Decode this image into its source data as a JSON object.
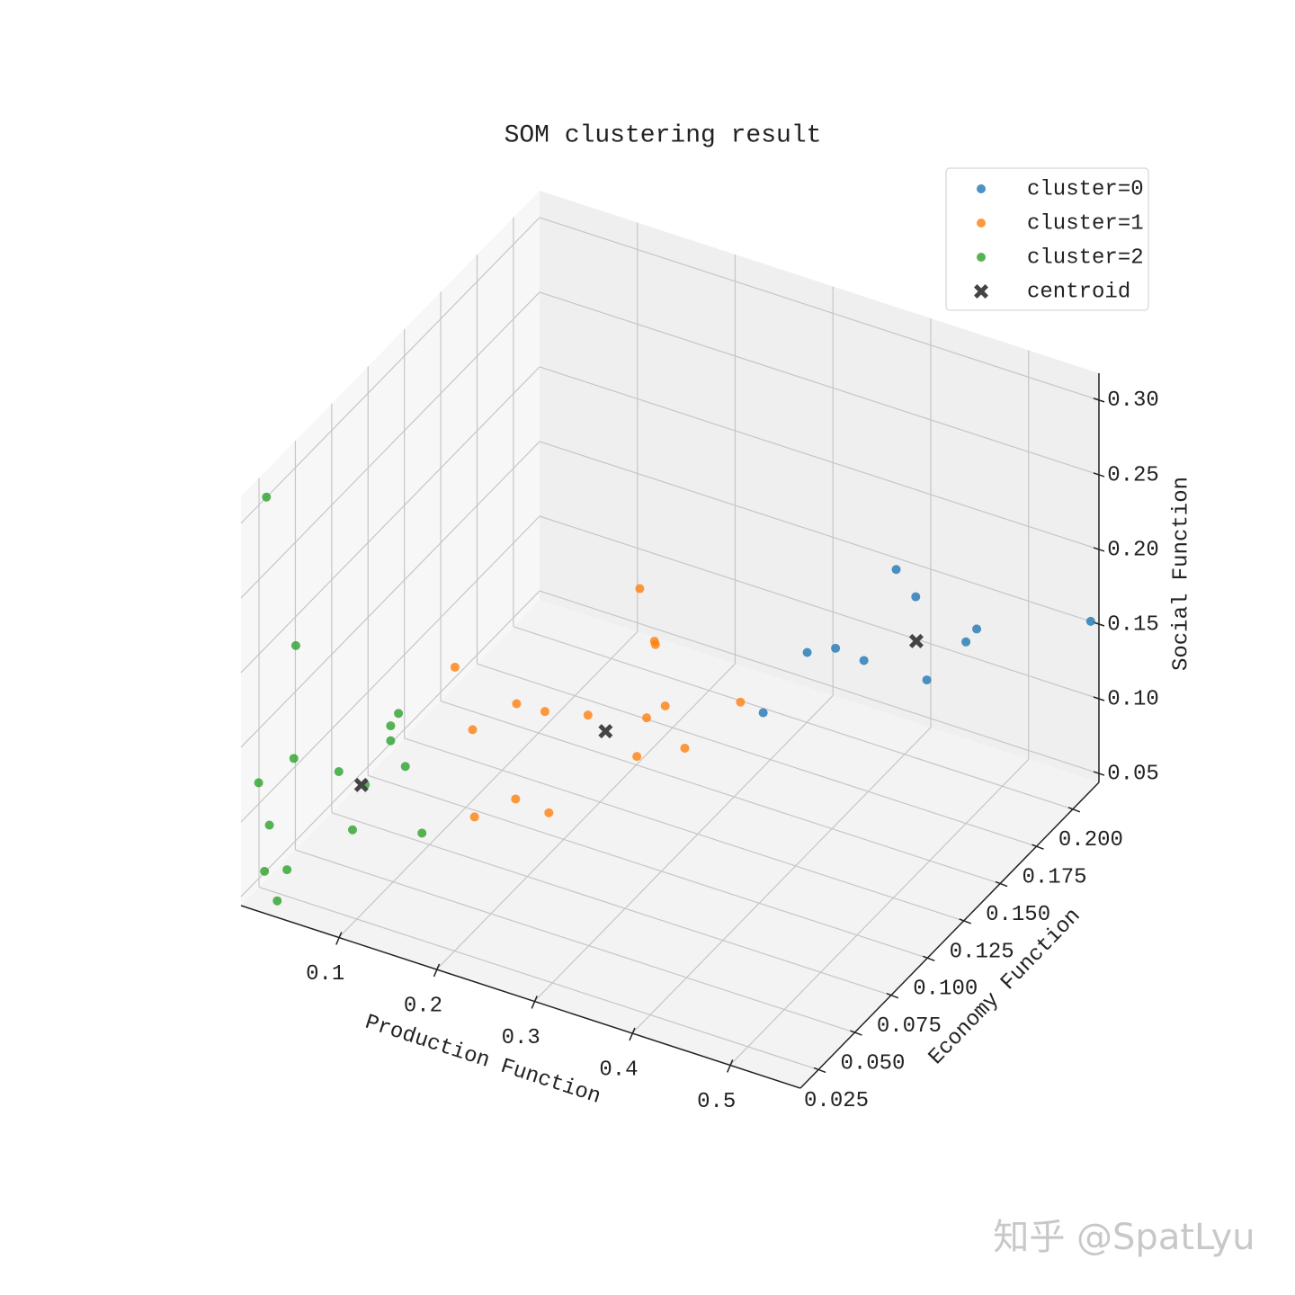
{
  "chart_data": {
    "type": "scatter3d",
    "title": "SOM clustering result",
    "x_label": "Production Function",
    "y_label": "Economy Function",
    "z_label": "Social Function",
    "xlim": [
      0,
      0.572
    ],
    "ylim": [
      0.0126,
      0.218
    ],
    "zlim": [
      0.044,
      0.318
    ],
    "xticks": [
      0.1,
      0.2,
      0.3,
      0.4,
      0.5
    ],
    "yticks": [
      0.025,
      {
        "value": 0.05,
        "label": "0.050"
      },
      0.075,
      {
        "value": 0.1,
        "label": "0.100"
      },
      0.125,
      {
        "value": 0.15,
        "label": "0.150"
      },
      0.175,
      {
        "value": 0.2,
        "label": "0.200"
      }
    ],
    "zticks": [
      0.05,
      {
        "value": 0.1,
        "label": "0.10"
      },
      0.15,
      {
        "value": 0.2,
        "label": "0.20"
      },
      0.25,
      {
        "value": 0.3,
        "label": "0.30"
      }
    ],
    "grid": true,
    "legend": "upper right",
    "series": [
      {
        "name": "cluster=0",
        "color": "#1f77b4",
        "marker": "o",
        "x": [
          0.491,
          0.511,
          0.499,
          0.488,
          0.448,
          0.4,
          0.429,
          0.458,
          0.355,
          0.568
        ],
        "y": [
          0.133,
          0.133,
          0.183,
          0.183,
          0.183,
          0.133,
          0.133,
          0.133,
          0.133,
          0.215
        ],
        "z": [
          0.254,
          0.24,
          0.166,
          0.155,
          0.121,
          0.179,
          0.188,
          0.186,
          0.129,
          0.154
        ]
      },
      {
        "name": "cluster=1",
        "color": "#ff7f0e",
        "marker": "o",
        "x": [
          0.318,
          0.333,
          0.334,
          0.129,
          0.192,
          0.221,
          0.265,
          0.344,
          0.325,
          0.421,
          0.147,
          0.364,
          0.315,
          0.191,
          0.225,
          0.149
        ],
        "y": [
          0.073,
          0.073,
          0.073,
          0.073,
          0.073,
          0.073,
          0.073,
          0.073,
          0.073,
          0.073,
          0.073,
          0.073,
          0.073,
          0.073,
          0.073,
          0.073
        ],
        "z": [
          0.264,
          0.232,
          0.23,
          0.171,
          0.16,
          0.161,
          0.168,
          0.191,
          0.179,
          0.21,
          0.133,
          0.167,
          0.151,
          0.096,
          0.094,
          0.075
        ]
      },
      {
        "name": "cluster=2",
        "color": "#2ca02c",
        "marker": "o",
        "x": [
          0.018,
          0.048,
          0.153,
          0.145,
          0.145,
          0.046,
          0.092,
          0.16,
          0.01,
          0.119,
          0.021,
          0.106,
          0.177,
          0.016,
          0.039,
          0.029
        ],
        "y": [
          0.018,
          0.018,
          0.018,
          0.018,
          0.018,
          0.018,
          0.018,
          0.018,
          0.018,
          0.018,
          0.018,
          0.018,
          0.018,
          0.018,
          0.018,
          0.018
        ],
        "z": [
          0.316,
          0.223,
          0.2,
          0.19,
          0.18,
          0.147,
          0.148,
          0.166,
          0.123,
          0.145,
          0.097,
          0.112,
          0.125,
          0.065,
          0.071,
          0.048
        ]
      },
      {
        "name": "centroid",
        "color": "#444444",
        "marker": "X",
        "x": [
          0.467,
          0.283,
          0.115
        ],
        "y": [
          0.163,
          0.073,
          0.018
        ],
        "z": [
          0.171,
          0.161,
          0.144
        ]
      }
    ],
    "watermark": "知乎 @SpatLyu"
  }
}
